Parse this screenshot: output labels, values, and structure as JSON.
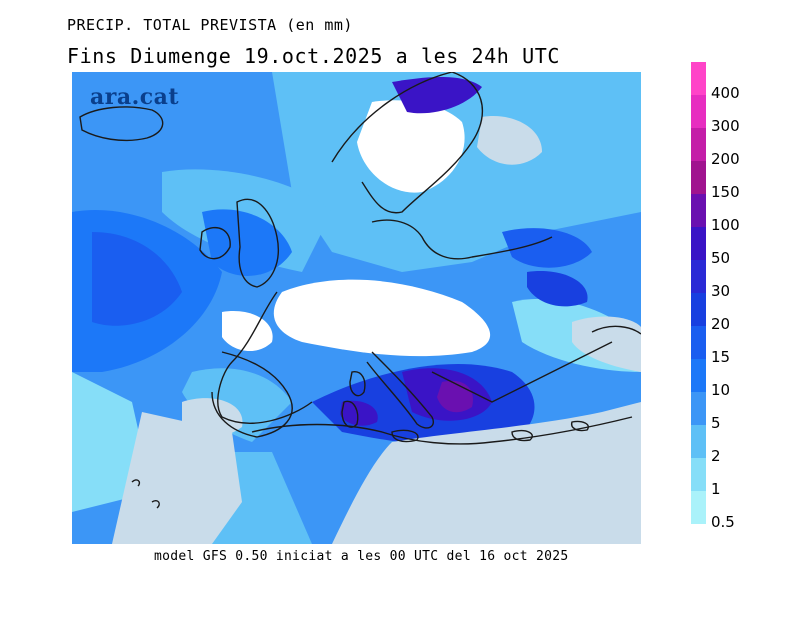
{
  "header": {
    "title": "PRECIP. TOTAL PREVISTA (en mm)",
    "subtitle": "Fins Diumenge 19.oct.2025 a les 24h UTC"
  },
  "footer": {
    "model_info": "model GFS 0.50 iniciat a les 00 UTC del 16 oct 2025"
  },
  "logo": {
    "text": "ara.cat"
  },
  "legend": {
    "entries": [
      {
        "label": "400",
        "color": "#ff44c8"
      },
      {
        "label": "300",
        "color": "#e72ec0"
      },
      {
        "label": "200",
        "color": "#c41ea8"
      },
      {
        "label": "150",
        "color": "#a0148f"
      },
      {
        "label": "100",
        "color": "#6a10b0"
      },
      {
        "label": "50",
        "color": "#3a14c6"
      },
      {
        "label": "30",
        "color": "#2a2ad6"
      },
      {
        "label": "20",
        "color": "#1840e0"
      },
      {
        "label": "15",
        "color": "#1a5ef0"
      },
      {
        "label": "10",
        "color": "#1c78f8"
      },
      {
        "label": "5",
        "color": "#3c96f6"
      },
      {
        "label": "2",
        "color": "#5ec0f6"
      },
      {
        "label": "1",
        "color": "#86def8"
      },
      {
        "label": "0.5",
        "color": "#aaf2fa"
      }
    ]
  },
  "map_colors": {
    "no_data_land": "#c9dcea",
    "dry": "#ffffff",
    "coastline": "#1a1a1a"
  }
}
